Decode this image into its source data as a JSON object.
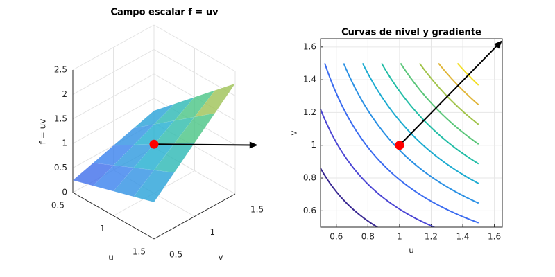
{
  "chart_data": [
    {
      "type": "surface",
      "title": "Campo escalar f = uv",
      "xlabel": "u",
      "ylabel": "v",
      "zlabel": "f = uv",
      "x": [
        0.5,
        0.75,
        1,
        1.25,
        1.5
      ],
      "y": [
        0.5,
        0.75,
        1,
        1.25,
        1.5
      ],
      "z": [
        [
          0.25,
          0.375,
          0.5,
          0.625,
          0.75
        ],
        [
          0.375,
          0.5625,
          0.75,
          0.9375,
          1.125
        ],
        [
          0.5,
          0.75,
          1,
          1.25,
          1.5
        ],
        [
          0.625,
          0.9375,
          1.25,
          1.5625,
          1.875
        ],
        [
          0.75,
          1.125,
          1.5,
          1.875,
          2.25
        ]
      ],
      "xlim": [
        0.5,
        1.5
      ],
      "ylim": [
        0.5,
        1.5
      ],
      "zlim": [
        0,
        2.5
      ],
      "xticks": [
        0.5,
        1,
        1.5
      ],
      "yticks": [
        0.5,
        1,
        1.5
      ],
      "zticks": [
        0,
        0.5,
        1,
        1.5,
        2,
        2.5
      ],
      "colormap": [
        "#4a3ad8",
        "#3b7cf0",
        "#1fb0cf",
        "#3cc48c",
        "#b9c246",
        "#f5dc30"
      ],
      "grid": true,
      "point": [
        1,
        1,
        1
      ],
      "point_color": "#ff0000",
      "arrow": {
        "from": [
          1,
          1,
          1
        ],
        "to": [
          1.64,
          1.64,
          1
        ]
      },
      "arrow_color": "#000000"
    },
    {
      "type": "contour",
      "title": "Curvas de nivel y gradiente",
      "xlabel": "u",
      "ylabel": "v",
      "levels": [
        0.43,
        0.61,
        0.79,
        0.97,
        1.15,
        1.33,
        1.51,
        1.69,
        1.87,
        2.05
      ],
      "colors": [
        "#3b2a93",
        "#4c46d4",
        "#3b6cf0",
        "#2a90e4",
        "#1cabd0",
        "#22bda6",
        "#5bc67a",
        "#a2c44c",
        "#e0b63a",
        "#f3df28"
      ],
      "xlim": [
        0.5,
        1.65
      ],
      "ylim": [
        0.5,
        1.65
      ],
      "xticks": [
        0.6,
        0.8,
        1,
        1.2,
        1.4,
        1.6
      ],
      "yticks": [
        0.6,
        0.8,
        1,
        1.2,
        1.4,
        1.6
      ],
      "grid": true,
      "point": [
        1,
        1
      ],
      "point_color": "#ff0000",
      "arrow": {
        "from": [
          1,
          1
        ],
        "to": [
          1.65,
          1.64
        ]
      },
      "arrow_color": "#000000"
    }
  ]
}
